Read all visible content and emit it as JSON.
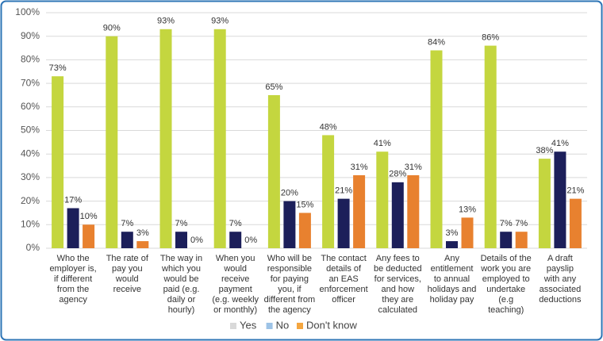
{
  "chart_data": {
    "type": "bar",
    "categories": [
      "Who the\nemployer is,\nif different\nfrom the\nagency",
      "The rate of\npay you\nwould\nreceive",
      "The way in\nwhich you\nwould be\npaid (e.g.\ndaily or\nhourly)",
      "When you\nwould\nreceive\npayment\n(e.g. weekly\nor monthly)",
      "Who will be\nresponsible\nfor paying\nyou, if\ndifferent from\nthe agency",
      "The contact\ndetails of\nan EAS\nenforcement\nofficer",
      "Any fees to\nbe deducted\nfor services,\nand how\nthey are\ncalculated",
      "Any\nentitlement\nto annual\nholidays and\nholiday pay",
      "Details of the\nwork you are\nemployed to\nundertake\n(e.g\nteaching)",
      "A draft\npayslip\nwith any\nassociated\ndeductions"
    ],
    "series": [
      {
        "name": "Yes",
        "color": "#c4d63f",
        "legend_color": "#d9d9d9",
        "values": [
          73,
          90,
          93,
          93,
          65,
          48,
          41,
          84,
          86,
          38
        ],
        "value_labels": [
          "73%",
          "90%",
          "93%",
          "93%",
          "65%",
          "48%",
          "41%",
          "84%",
          "86%",
          "38%"
        ]
      },
      {
        "name": "No",
        "color": "#1c1f5a",
        "legend_color": "#9dc3e6",
        "values": [
          17,
          7,
          7,
          7,
          20,
          21,
          28,
          3,
          7,
          41
        ],
        "value_labels": [
          "17%",
          "7%",
          "7%",
          "7%",
          "20%",
          "21%",
          "28%",
          "3%",
          "7%",
          "41%"
        ]
      },
      {
        "name": "Don't know",
        "color": "#e8812f",
        "legend_color": "#f4a640",
        "values": [
          10,
          3,
          0,
          0,
          15,
          31,
          31,
          13,
          7,
          21
        ],
        "value_labels": [
          "10%",
          "3%",
          "0%",
          "0%",
          "15%",
          "31%",
          "31%",
          "13%",
          "7%",
          "21%"
        ]
      }
    ],
    "ylim": [
      0,
      100
    ],
    "yticks": [
      {
        "value": 0,
        "label": "0%"
      },
      {
        "value": 10,
        "label": "10%"
      },
      {
        "value": 20,
        "label": "20%"
      },
      {
        "value": 30,
        "label": "30%"
      },
      {
        "value": 40,
        "label": "40%"
      },
      {
        "value": 50,
        "label": "50%"
      },
      {
        "value": 60,
        "label": "60%"
      },
      {
        "value": 70,
        "label": "70%"
      },
      {
        "value": 80,
        "label": "80%"
      },
      {
        "value": 90,
        "label": "90%"
      },
      {
        "value": 100,
        "label": "100%"
      }
    ],
    "grid": true,
    "legend": "bottom"
  }
}
